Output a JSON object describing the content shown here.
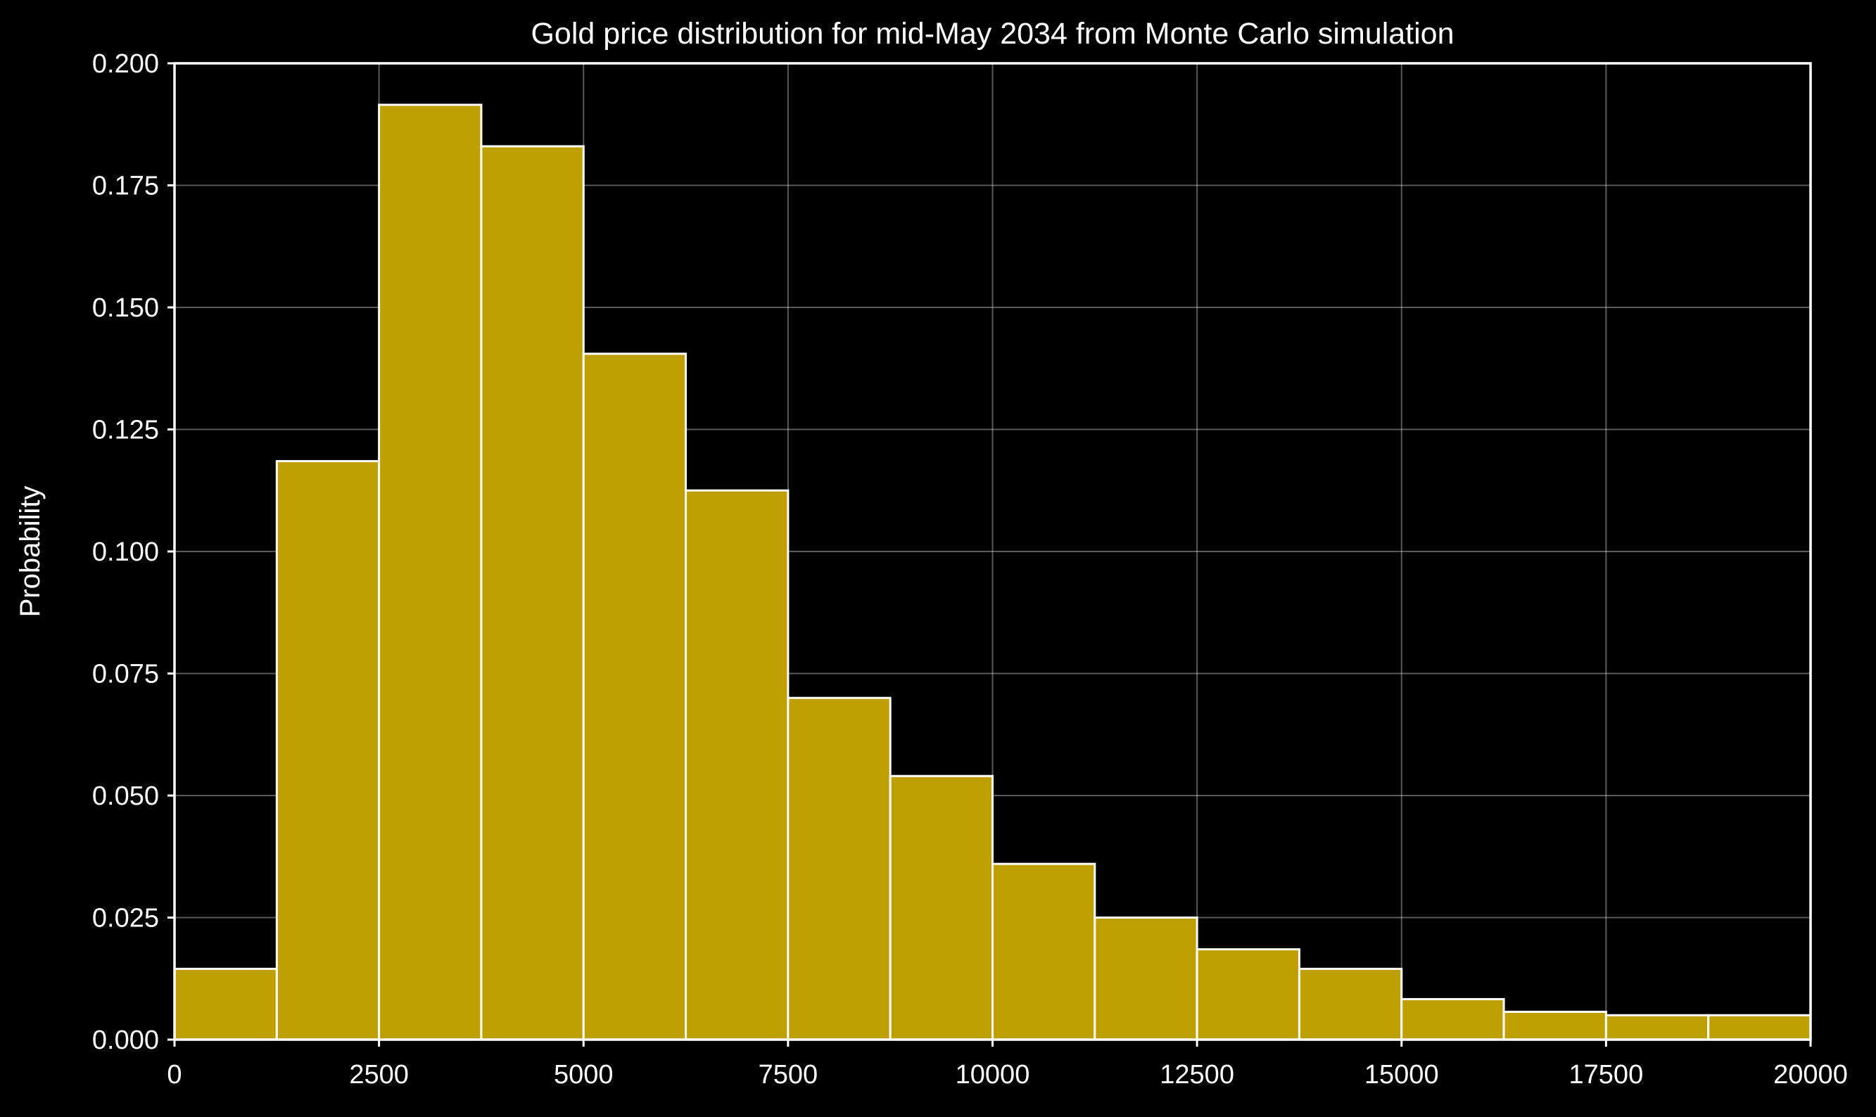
{
  "chart_data": {
    "type": "bar",
    "title": "Gold price distribution for mid-May 2034 from Monte Carlo simulation",
    "xlabel": "",
    "ylabel": "Probability",
    "xlim": [
      0,
      20000
    ],
    "ylim": [
      0,
      0.2
    ],
    "grid": true,
    "background": "#000000",
    "bar_color": "#bf9f00",
    "edge_color": "#ffffff",
    "x_ticks": [
      "0",
      "2500",
      "5000",
      "7500",
      "10000",
      "12500",
      "15000",
      "17500",
      "20000"
    ],
    "y_ticks": [
      "0.000",
      "0.025",
      "0.050",
      "0.075",
      "0.100",
      "0.125",
      "0.150",
      "0.175",
      "0.200"
    ],
    "bin_edges": [
      0,
      1250,
      2500,
      3750,
      5000,
      6250,
      7500,
      8750,
      10000,
      11250,
      12500,
      13750,
      15000,
      16250,
      17500,
      18750,
      20000
    ],
    "values": [
      0.0145,
      0.1185,
      0.1915,
      0.183,
      0.1405,
      0.1125,
      0.07,
      0.054,
      0.036,
      0.025,
      0.0185,
      0.0145,
      0.0083,
      0.0057,
      0.005,
      0.005
    ]
  }
}
